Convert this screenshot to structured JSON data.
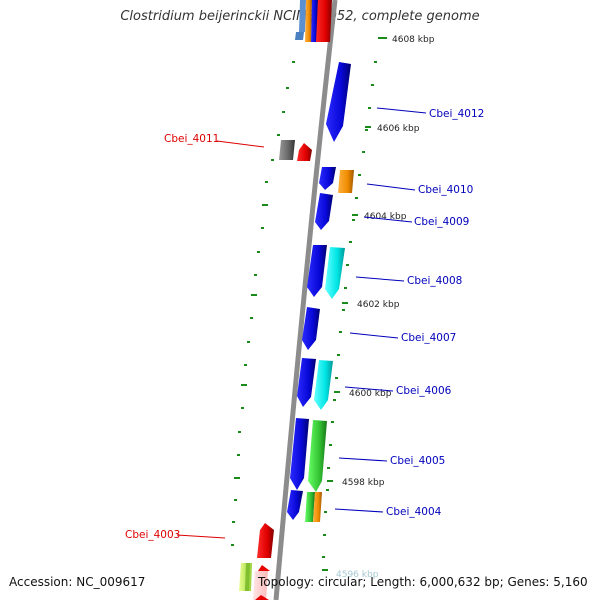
{
  "title": "Clostridium beijerinckii NCIMB 8052, complete genome",
  "footer": {
    "accession": "Accession: NC_009617",
    "topology": "Topology: circular; Length: 6,000,632 bp; Genes: 5,160"
  },
  "colors": {
    "label_red": "#dd0000",
    "label_blue": "#0000bb",
    "backbone": "#8c8c8c",
    "ticks": "#1a8a1a"
  },
  "ticks": [
    "4608 kbp",
    "4606 kbp",
    "4604 kbp",
    "4602 kbp",
    "4600 kbp",
    "4598 kbp",
    "4596 kbp"
  ],
  "genes": [
    {
      "id": "cbei-4012",
      "label": "Cbei_4012",
      "strand": "plus",
      "color": "#0a0ae6",
      "label_color": "blue"
    },
    {
      "id": "cbei-4011",
      "label": "Cbei_4011",
      "strand": "minus",
      "color": "#e60000",
      "label_color": "red"
    },
    {
      "id": "cbei-4010",
      "label": "Cbei_4010",
      "strand": "plus",
      "color": "#0a0ae6",
      "label_color": "blue"
    },
    {
      "id": "cbei-4009",
      "label": "Cbei_4009",
      "strand": "plus",
      "color": "#0a0ae6",
      "label_color": "blue"
    },
    {
      "id": "cbei-4008",
      "label": "Cbei_4008",
      "strand": "plus",
      "color": "#0a0ae6",
      "label_color": "blue"
    },
    {
      "id": "cbei-4007",
      "label": "Cbei_4007",
      "strand": "plus",
      "color": "#0a0ae6",
      "label_color": "blue"
    },
    {
      "id": "cbei-4006",
      "label": "Cbei_4006",
      "strand": "plus",
      "color": "#0a0ae6",
      "label_color": "blue"
    },
    {
      "id": "cbei-4005",
      "label": "Cbei_4005",
      "strand": "plus",
      "color": "#0a0ae6",
      "label_color": "blue"
    },
    {
      "id": "cbei-4004",
      "label": "Cbei_4004",
      "strand": "plus",
      "color": "#0a0ae6",
      "label_color": "blue"
    },
    {
      "id": "cbei-4003",
      "label": "Cbei_4003",
      "strand": "minus",
      "color": "#e60000",
      "label_color": "red"
    }
  ]
}
